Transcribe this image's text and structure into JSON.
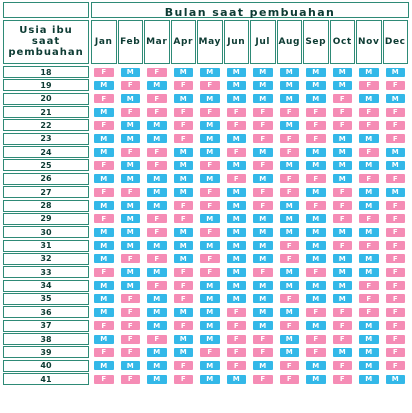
{
  "chart_data": {
    "type": "table",
    "title": "Bulan saat pembuahan",
    "row_header": "Usia ibu saat pembuahan",
    "months": [
      "Jan",
      "Feb",
      "Mar",
      "Apr",
      "May",
      "Jun",
      "Jul",
      "Aug",
      "Sep",
      "Oct",
      "Nov",
      "Dec"
    ],
    "rows": [
      {
        "age": "18",
        "values": [
          "F",
          "M",
          "F",
          "M",
          "M",
          "M",
          "M",
          "M",
          "M",
          "M",
          "M",
          "M"
        ]
      },
      {
        "age": "19",
        "values": [
          "M",
          "F",
          "M",
          "F",
          "F",
          "M",
          "M",
          "M",
          "M",
          "M",
          "F",
          "F"
        ]
      },
      {
        "age": "20",
        "values": [
          "F",
          "M",
          "F",
          "M",
          "M",
          "M",
          "M",
          "M",
          "M",
          "F",
          "M",
          "M"
        ]
      },
      {
        "age": "21",
        "values": [
          "M",
          "F",
          "F",
          "F",
          "F",
          "F",
          "F",
          "F",
          "F",
          "F",
          "F",
          "F"
        ]
      },
      {
        "age": "22",
        "values": [
          "F",
          "M",
          "M",
          "F",
          "M",
          "F",
          "F",
          "M",
          "F",
          "F",
          "F",
          "F"
        ]
      },
      {
        "age": "23",
        "values": [
          "M",
          "M",
          "M",
          "F",
          "M",
          "M",
          "F",
          "F",
          "F",
          "M",
          "M",
          "F"
        ]
      },
      {
        "age": "24",
        "values": [
          "M",
          "F",
          "F",
          "M",
          "M",
          "F",
          "M",
          "F",
          "M",
          "M",
          "F",
          "M"
        ]
      },
      {
        "age": "25",
        "values": [
          "F",
          "M",
          "F",
          "M",
          "F",
          "M",
          "F",
          "M",
          "M",
          "M",
          "M",
          "M"
        ]
      },
      {
        "age": "26",
        "values": [
          "M",
          "M",
          "M",
          "M",
          "M",
          "F",
          "M",
          "F",
          "F",
          "M",
          "F",
          "F"
        ]
      },
      {
        "age": "27",
        "values": [
          "F",
          "F",
          "M",
          "M",
          "F",
          "M",
          "F",
          "F",
          "M",
          "F",
          "M",
          "M"
        ]
      },
      {
        "age": "28",
        "values": [
          "M",
          "M",
          "M",
          "F",
          "F",
          "M",
          "F",
          "M",
          "F",
          "F",
          "M",
          "F"
        ]
      },
      {
        "age": "29",
        "values": [
          "F",
          "M",
          "F",
          "F",
          "M",
          "M",
          "M",
          "M",
          "M",
          "F",
          "F",
          "F"
        ]
      },
      {
        "age": "30",
        "values": [
          "M",
          "M",
          "F",
          "M",
          "F",
          "M",
          "M",
          "M",
          "M",
          "M",
          "M",
          "F"
        ]
      },
      {
        "age": "31",
        "values": [
          "M",
          "M",
          "M",
          "M",
          "M",
          "M",
          "M",
          "F",
          "M",
          "F",
          "F",
          "F"
        ]
      },
      {
        "age": "32",
        "values": [
          "M",
          "F",
          "F",
          "M",
          "F",
          "M",
          "M",
          "F",
          "M",
          "M",
          "M",
          "F"
        ]
      },
      {
        "age": "33",
        "values": [
          "F",
          "M",
          "M",
          "F",
          "F",
          "M",
          "F",
          "M",
          "F",
          "M",
          "M",
          "F"
        ]
      },
      {
        "age": "34",
        "values": [
          "M",
          "M",
          "F",
          "F",
          "M",
          "M",
          "M",
          "M",
          "M",
          "M",
          "F",
          "F"
        ]
      },
      {
        "age": "35",
        "values": [
          "M",
          "F",
          "M",
          "F",
          "M",
          "M",
          "M",
          "F",
          "M",
          "M",
          "F",
          "F"
        ]
      },
      {
        "age": "36",
        "values": [
          "M",
          "F",
          "M",
          "M",
          "M",
          "F",
          "M",
          "M",
          "F",
          "F",
          "F",
          "F"
        ]
      },
      {
        "age": "37",
        "values": [
          "F",
          "F",
          "M",
          "F",
          "M",
          "F",
          "M",
          "F",
          "M",
          "F",
          "M",
          "F"
        ]
      },
      {
        "age": "38",
        "values": [
          "M",
          "F",
          "F",
          "M",
          "M",
          "F",
          "F",
          "M",
          "F",
          "F",
          "M",
          "F"
        ]
      },
      {
        "age": "39",
        "values": [
          "F",
          "F",
          "M",
          "M",
          "F",
          "F",
          "F",
          "M",
          "F",
          "M",
          "M",
          "F"
        ]
      },
      {
        "age": "40",
        "values": [
          "M",
          "M",
          "M",
          "F",
          "M",
          "F",
          "M",
          "F",
          "M",
          "F",
          "M",
          "F"
        ]
      },
      {
        "age": "41",
        "values": [
          "F",
          "F",
          "M",
          "F",
          "M",
          "M",
          "F",
          "F",
          "M",
          "F",
          "M",
          "M"
        ]
      }
    ]
  },
  "colors": {
    "F": "#f58cb5",
    "M": "#33b8e8",
    "border": "#2e8a76",
    "text": "#0d3b33"
  }
}
